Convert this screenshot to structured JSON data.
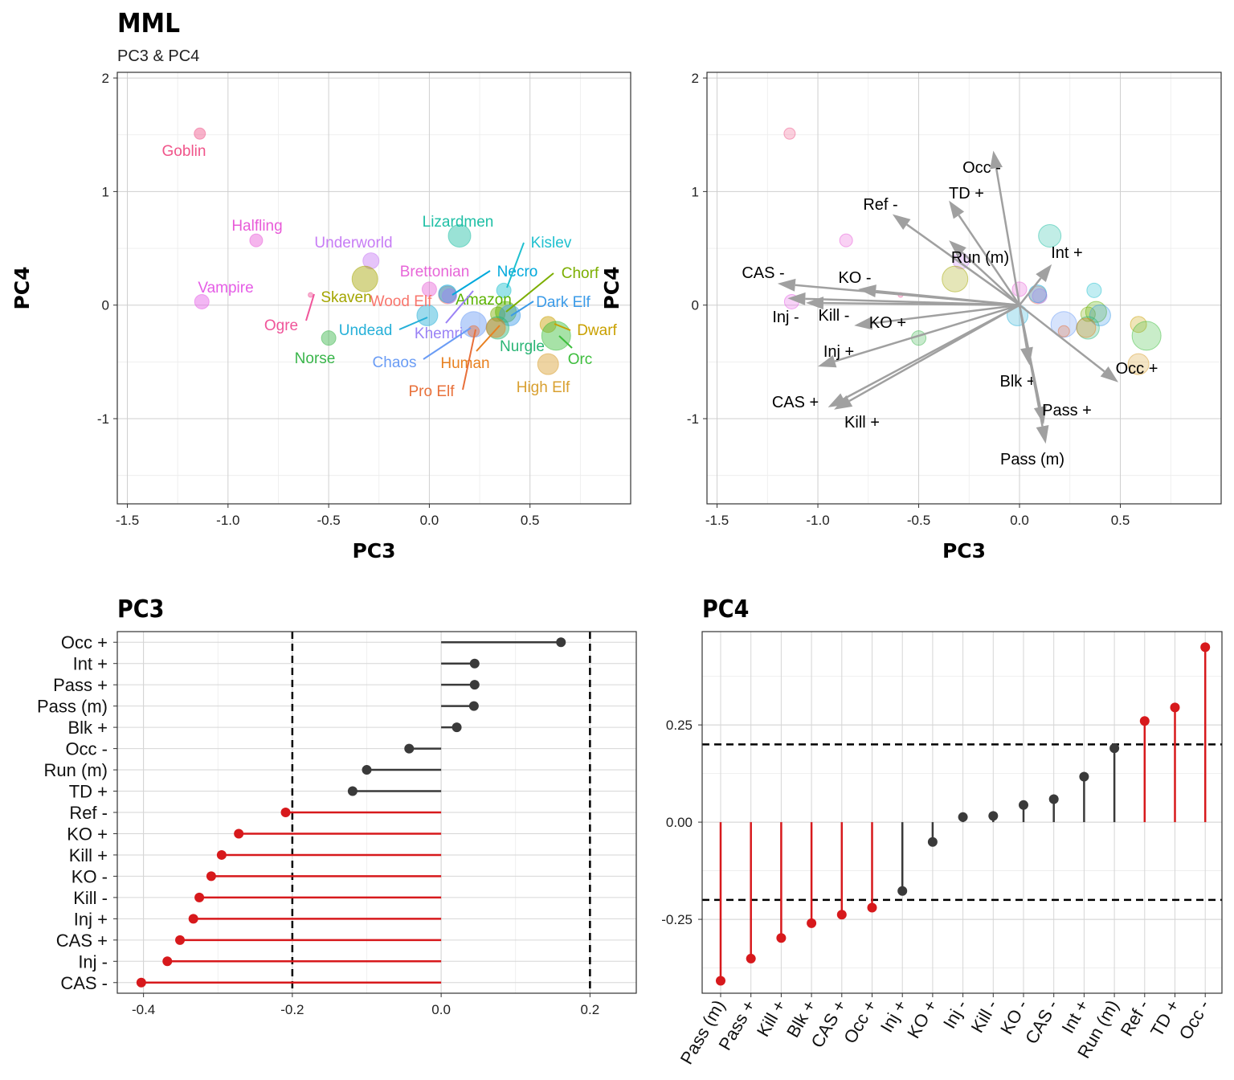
{
  "title": "MML",
  "subtitle": "PC3 & PC4",
  "chart_data": [
    {
      "type": "scatter",
      "xlabel": "PC3",
      "ylabel": "PC4",
      "xlim": [
        -1.55,
        1.0
      ],
      "ylim": [
        -1.75,
        2.05
      ],
      "x_ticks": [
        -1.5,
        -1.0,
        -0.5,
        0.0,
        0.5
      ],
      "x_tick_labels": [
        "-1.5",
        "-1.0",
        "-0.5",
        "0.0",
        "0.5"
      ],
      "y_ticks": [
        -1,
        0,
        1,
        2
      ],
      "y_tick_labels": [
        "-1",
        "0",
        "1",
        "2"
      ],
      "grid": true,
      "points": [
        {
          "name": "Goblin",
          "x": -1.14,
          "y": 1.51,
          "size": 7,
          "color": "#f0558a"
        },
        {
          "name": "Halfling",
          "x": -0.86,
          "y": 0.57,
          "size": 8,
          "color": "#e85ad8"
        },
        {
          "name": "Vampire",
          "x": -1.13,
          "y": 0.03,
          "size": 9,
          "color": "#e55de6"
        },
        {
          "name": "Ogre",
          "x": -0.59,
          "y": 0.09,
          "size": 3,
          "color": "#f0559a"
        },
        {
          "name": "Underworld",
          "x": -0.29,
          "y": 0.39,
          "size": 10,
          "color": "#c77cf5"
        },
        {
          "name": "Skaven",
          "x": -0.32,
          "y": 0.23,
          "size": 16,
          "color": "#a3a500"
        },
        {
          "name": "Norse",
          "x": -0.5,
          "y": -0.29,
          "size": 9,
          "color": "#39b54a"
        },
        {
          "name": "Lizardmen",
          "x": 0.15,
          "y": 0.61,
          "size": 14,
          "color": "#1fbfa5"
        },
        {
          "name": "Brettonian",
          "x": 0.0,
          "y": 0.14,
          "size": 9,
          "color": "#e766d8"
        },
        {
          "name": "Wood Elf",
          "x": 0.09,
          "y": 0.09,
          "size": 11,
          "color": "#f8766d"
        },
        {
          "name": "Necro",
          "x": 0.09,
          "y": 0.1,
          "size": 11,
          "color": "#00a9dc"
        },
        {
          "name": "Kislev",
          "x": 0.37,
          "y": 0.13,
          "size": 9,
          "color": "#1fc0cf"
        },
        {
          "name": "Chorf",
          "x": 0.34,
          "y": -0.08,
          "size": 9,
          "color": "#7cae00"
        },
        {
          "name": "Amazon",
          "x": 0.38,
          "y": -0.06,
          "size": 13,
          "color": "#5bb300"
        },
        {
          "name": "Dark Elf",
          "x": 0.4,
          "y": -0.09,
          "size": 13,
          "color": "#3b9be8"
        },
        {
          "name": "Undead",
          "x": -0.01,
          "y": -0.09,
          "size": 13,
          "color": "#26b0d8"
        },
        {
          "name": "Khemri",
          "x": 0.1,
          "y": 0.08,
          "size": 9,
          "color": "#9a82f5"
        },
        {
          "name": "Chaos",
          "x": 0.22,
          "y": -0.17,
          "size": 16,
          "color": "#6a9cf5"
        },
        {
          "name": "Nurgle",
          "x": 0.34,
          "y": -0.2,
          "size": 14,
          "color": "#2ab575"
        },
        {
          "name": "Human",
          "x": 0.33,
          "y": -0.2,
          "size": 12,
          "color": "#e8801f"
        },
        {
          "name": "Pro Elf",
          "x": 0.22,
          "y": -0.23,
          "size": 7,
          "color": "#e8703a"
        },
        {
          "name": "Dwarf",
          "x": 0.59,
          "y": -0.17,
          "size": 10,
          "color": "#c9a000"
        },
        {
          "name": "Orc",
          "x": 0.63,
          "y": -0.27,
          "size": 18,
          "color": "#3cbe3c"
        },
        {
          "name": "High Elf",
          "x": 0.59,
          "y": -0.52,
          "size": 13,
          "color": "#d9a030"
        }
      ]
    },
    {
      "type": "scatter",
      "xlabel": "PC3",
      "ylabel": "PC4",
      "xlim": [
        -1.55,
        1.0
      ],
      "ylim": [
        -1.75,
        2.05
      ],
      "x_ticks": [
        -1.5,
        -1.0,
        -0.5,
        0.0,
        0.5
      ],
      "x_tick_labels": [
        "-1.5",
        "-1.0",
        "-0.5",
        "0.0",
        "0.5"
      ],
      "y_ticks": [
        -1,
        0,
        1,
        2
      ],
      "y_tick_labels": [
        "-1",
        "0",
        "1",
        "2"
      ],
      "grid": true,
      "arrow_color": "#a0a0a0",
      "arrows": [
        {
          "label": "Occ -",
          "x": -0.13,
          "y": 1.36
        },
        {
          "label": "TD +",
          "x": -0.35,
          "y": 0.92
        },
        {
          "label": "Ref -",
          "x": -0.63,
          "y": 0.8
        },
        {
          "label": "Run (m)",
          "x": -0.35,
          "y": 0.57
        },
        {
          "label": "Int +",
          "x": 0.16,
          "y": 0.36
        },
        {
          "label": "CAS -",
          "x": -1.2,
          "y": 0.19
        },
        {
          "label": "KO -",
          "x": -0.8,
          "y": 0.14
        },
        {
          "label": "Inj -",
          "x": -1.15,
          "y": 0.06
        },
        {
          "label": "Kill -",
          "x": -1.06,
          "y": 0.02
        },
        {
          "label": "KO +",
          "x": -0.82,
          "y": -0.18
        },
        {
          "label": "Inj +",
          "x": -1.0,
          "y": -0.54
        },
        {
          "label": "CAS +",
          "x": -0.95,
          "y": -0.9
        },
        {
          "label": "Kill +",
          "x": -0.92,
          "y": -0.92
        },
        {
          "label": "Occ +",
          "x": 0.49,
          "y": -0.68
        },
        {
          "label": "Blk +",
          "x": 0.05,
          "y": -0.53
        },
        {
          "label": "Pass +",
          "x": 0.12,
          "y": -1.05
        },
        {
          "label": "Pass (m)",
          "x": 0.13,
          "y": -1.22
        }
      ]
    },
    {
      "type": "bar",
      "subtype": "lollipop-horizontal",
      "title": "PC3",
      "categories": [
        "Occ +",
        "Int +",
        "Pass +",
        "Pass (m)",
        "Blk +",
        "Occ -",
        "Run (m)",
        "TD +",
        "Ref -",
        "KO +",
        "Kill +",
        "KO -",
        "Kill -",
        "Inj +",
        "CAS +",
        "Inj -",
        "CAS -"
      ],
      "values": [
        0.161,
        0.045,
        0.045,
        0.044,
        0.021,
        -0.043,
        -0.1,
        -0.119,
        -0.209,
        -0.272,
        -0.295,
        -0.309,
        -0.325,
        -0.333,
        -0.351,
        -0.368,
        -0.403
      ],
      "threshold": 0.2,
      "xlim": [
        -0.405,
        0.232
      ],
      "x_ticks": [
        -0.4,
        -0.2,
        0.0,
        0.2
      ],
      "x_tick_labels": [
        "-0.4",
        "-0.2",
        "0.0",
        "0.2"
      ],
      "highlight_color": "#d7191c",
      "normal_color": "#3a3a3a"
    },
    {
      "type": "bar",
      "subtype": "lollipop-vertical",
      "title": "PC4",
      "categories": [
        "Pass (m)",
        "Pass +",
        "Kill +",
        "Blk +",
        "CAS +",
        "Occ +",
        "Inj +",
        "KO +",
        "Inj -",
        "Kill -",
        "KO -",
        "CAS -",
        "Int +",
        "Run (m)",
        "Ref -",
        "TD +",
        "Occ -"
      ],
      "values": [
        -0.408,
        -0.351,
        -0.298,
        -0.26,
        -0.238,
        -0.22,
        -0.177,
        -0.051,
        0.013,
        0.016,
        0.044,
        0.059,
        0.117,
        0.19,
        0.26,
        0.295,
        0.45
      ],
      "threshold": 0.2,
      "ylim": [
        -0.44,
        0.49
      ],
      "y_ticks": [
        -0.25,
        0.0,
        0.25
      ],
      "y_tick_labels": [
        "-0.25",
        "0.00",
        "0.25"
      ],
      "highlight_color": "#d7191c",
      "normal_color": "#3a3a3a"
    }
  ]
}
